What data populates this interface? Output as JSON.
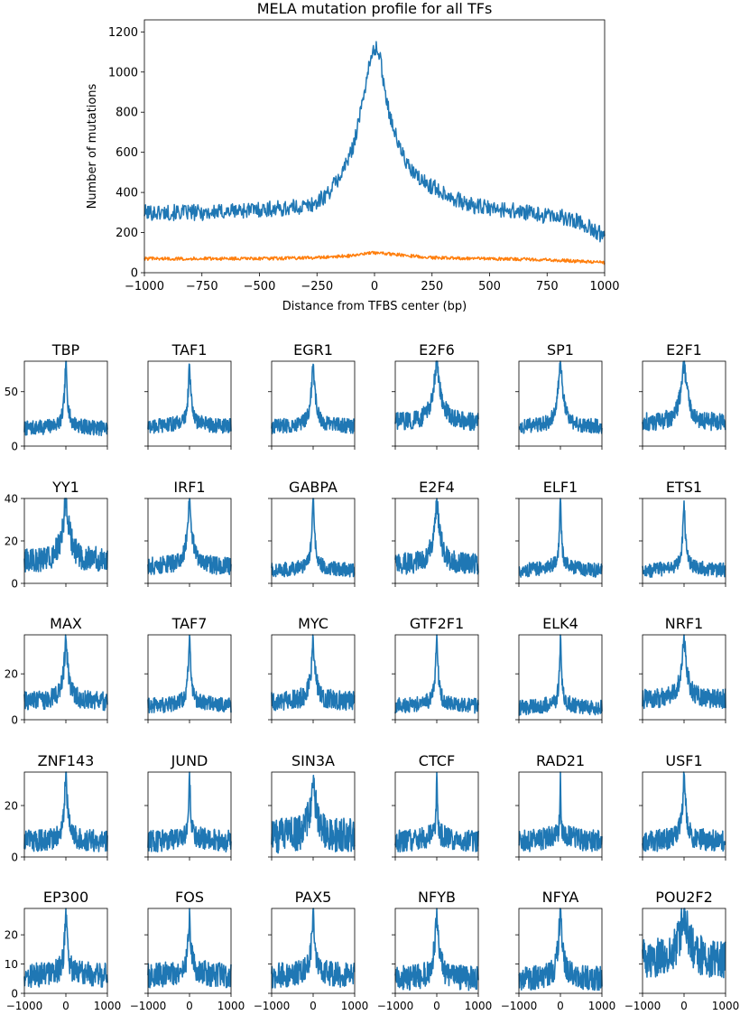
{
  "colors": {
    "observed": "#1f77b4",
    "expected": "#ff7f0e",
    "axis": "#000000",
    "background": "#ffffff"
  },
  "chart_data": [
    {
      "type": "line",
      "title": "MELA mutation profile for all TFs",
      "xlabel": "Distance from TFBS center (bp)",
      "ylabel": "Number of mutations",
      "xlim": [
        -1000,
        1000
      ],
      "ylim": [
        0,
        1260
      ],
      "xticks": [
        -1000,
        -750,
        -500,
        -250,
        0,
        250,
        500,
        750,
        1000
      ],
      "xtick_labels": [
        "−1000",
        "−750",
        "−500",
        "−250",
        "0",
        "250",
        "500",
        "750",
        "1000"
      ],
      "yticks": [
        0,
        200,
        400,
        600,
        800,
        1000,
        1200
      ],
      "ytick_labels": [
        "0",
        "200",
        "400",
        "600",
        "800",
        "1000",
        "1200"
      ],
      "grid": false,
      "series": [
        {
          "color": "#1f77b4",
          "x": [
            -1000,
            -900,
            -800,
            -700,
            -600,
            -500,
            -400,
            -300,
            -250,
            -200,
            -150,
            -100,
            -60,
            -30,
            0,
            20,
            40,
            60,
            100,
            150,
            200,
            250,
            300,
            400,
            500,
            600,
            700,
            800,
            900,
            1000
          ],
          "y": [
            300,
            300,
            300,
            300,
            310,
            315,
            320,
            330,
            350,
            400,
            480,
            600,
            800,
            1000,
            1120,
            1100,
            950,
            820,
            650,
            520,
            460,
            430,
            400,
            340,
            320,
            310,
            290,
            280,
            250,
            180
          ],
          "noise": 25
        },
        {
          "color": "#ff7f0e",
          "x": [
            -1000,
            -750,
            -500,
            -250,
            -100,
            0,
            100,
            250,
            500,
            750,
            1000
          ],
          "y": [
            70,
            70,
            70,
            75,
            85,
            100,
            90,
            75,
            70,
            65,
            50
          ],
          "noise": 5
        }
      ]
    },
    {
      "type": "line",
      "title": "TBP",
      "xlim": [
        -1000,
        1000
      ],
      "ylim": [
        0,
        78
      ],
      "yticks": [
        0,
        50
      ],
      "ytick_labels": [
        "0",
        "50"
      ],
      "peak": 75,
      "base": 16,
      "hw": 40,
      "noise": 4
    },
    {
      "type": "line",
      "title": "TAF1",
      "xlim": [
        -1000,
        1000
      ],
      "ylim": [
        0,
        78
      ],
      "yticks": [
        0,
        50
      ],
      "ytick_labels": [],
      "peak": 73,
      "base": 18,
      "hw": 40,
      "noise": 4
    },
    {
      "type": "line",
      "title": "EGR1",
      "xlim": [
        -1000,
        1000
      ],
      "ylim": [
        0,
        78
      ],
      "yticks": [
        0,
        50
      ],
      "ytick_labels": [],
      "peak": 72,
      "base": 18,
      "hw": 60,
      "noise": 4
    },
    {
      "type": "line",
      "title": "E2F6",
      "xlim": [
        -1000,
        1000
      ],
      "ylim": [
        0,
        78
      ],
      "yticks": [
        0,
        50
      ],
      "ytick_labels": [],
      "peak": 72,
      "base": 22,
      "hw": 120,
      "noise": 5
    },
    {
      "type": "line",
      "title": "SP1",
      "xlim": [
        -1000,
        1000
      ],
      "ylim": [
        0,
        78
      ],
      "yticks": [
        0,
        50
      ],
      "ytick_labels": [],
      "peak": 73,
      "base": 18,
      "hw": 80,
      "noise": 4
    },
    {
      "type": "line",
      "title": "E2F1",
      "xlim": [
        -1000,
        1000
      ],
      "ylim": [
        0,
        78
      ],
      "yticks": [
        0,
        50
      ],
      "ytick_labels": [],
      "peak": 72,
      "base": 22,
      "hw": 100,
      "noise": 5
    },
    {
      "type": "line",
      "title": "YY1",
      "xlim": [
        -1000,
        1000
      ],
      "ylim": [
        0,
        40
      ],
      "yticks": [
        0,
        20,
        40
      ],
      "ytick_labels": [
        "0",
        "20",
        "40"
      ],
      "peak": 38,
      "base": 11,
      "hw": 100,
      "noise": 3.5
    },
    {
      "type": "line",
      "title": "IRF1",
      "xlim": [
        -1000,
        1000
      ],
      "ylim": [
        0,
        40
      ],
      "yticks": [
        0,
        20,
        40
      ],
      "ytick_labels": [],
      "peak": 38,
      "base": 8,
      "hw": 70,
      "noise": 2.5
    },
    {
      "type": "line",
      "title": "GABPA",
      "xlim": [
        -1000,
        1000
      ],
      "ylim": [
        0,
        40
      ],
      "yticks": [
        0,
        20,
        40
      ],
      "ytick_labels": [],
      "peak": 38,
      "base": 6,
      "hw": 40,
      "noise": 2
    },
    {
      "type": "line",
      "title": "E2F4",
      "xlim": [
        -1000,
        1000
      ],
      "ylim": [
        0,
        40
      ],
      "yticks": [
        0,
        20,
        40
      ],
      "ytick_labels": [],
      "peak": 37,
      "base": 9,
      "hw": 90,
      "noise": 3
    },
    {
      "type": "line",
      "title": "ELF1",
      "xlim": [
        -1000,
        1000
      ],
      "ylim": [
        0,
        40
      ],
      "yticks": [
        0,
        20,
        40
      ],
      "ytick_labels": [],
      "peak": 39,
      "base": 6,
      "hw": 30,
      "noise": 2
    },
    {
      "type": "line",
      "title": "ETS1",
      "xlim": [
        -1000,
        1000
      ],
      "ylim": [
        0,
        40
      ],
      "yticks": [
        0,
        20,
        40
      ],
      "ytick_labels": [],
      "peak": 37,
      "base": 6,
      "hw": 40,
      "noise": 2
    },
    {
      "type": "line",
      "title": "MAX",
      "xlim": [
        -1000,
        1000
      ],
      "ylim": [
        0,
        37
      ],
      "yticks": [
        0,
        20
      ],
      "ytick_labels": [
        "0",
        "20"
      ],
      "peak": 34,
      "base": 8,
      "hw": 60,
      "noise": 2.5
    },
    {
      "type": "line",
      "title": "TAF7",
      "xlim": [
        -1000,
        1000
      ],
      "ylim": [
        0,
        37
      ],
      "yticks": [
        0,
        20
      ],
      "ytick_labels": [],
      "peak": 34,
      "base": 6,
      "hw": 40,
      "noise": 2
    },
    {
      "type": "line",
      "title": "MYC",
      "xlim": [
        -1000,
        1000
      ],
      "ylim": [
        0,
        37
      ],
      "yticks": [
        0,
        20
      ],
      "ytick_labels": [],
      "peak": 33,
      "base": 8,
      "hw": 60,
      "noise": 2.5
    },
    {
      "type": "line",
      "title": "GTF2F1",
      "xlim": [
        -1000,
        1000
      ],
      "ylim": [
        0,
        37
      ],
      "yticks": [
        0,
        20
      ],
      "ytick_labels": [],
      "peak": 34,
      "base": 6,
      "hw": 40,
      "noise": 2
    },
    {
      "type": "line",
      "title": "ELK4",
      "xlim": [
        -1000,
        1000
      ],
      "ylim": [
        0,
        37
      ],
      "yticks": [
        0,
        20
      ],
      "ytick_labels": [],
      "peak": 34,
      "base": 5,
      "hw": 30,
      "noise": 2
    },
    {
      "type": "line",
      "title": "NRF1",
      "xlim": [
        -1000,
        1000
      ],
      "ylim": [
        0,
        37
      ],
      "yticks": [
        0,
        20
      ],
      "ytick_labels": [],
      "peak": 33,
      "base": 9,
      "hw": 80,
      "noise": 2.5
    },
    {
      "type": "line",
      "title": "ZNF143",
      "xlim": [
        -1000,
        1000
      ],
      "ylim": [
        0,
        33
      ],
      "yticks": [
        0,
        20
      ],
      "ytick_labels": [
        "0",
        "20"
      ],
      "peak": 31,
      "base": 6,
      "hw": 50,
      "noise": 2.5
    },
    {
      "type": "line",
      "title": "JUND",
      "xlim": [
        -1000,
        1000
      ],
      "ylim": [
        0,
        33
      ],
      "yticks": [
        0,
        20
      ],
      "ytick_labels": [],
      "peak": 30,
      "base": 6,
      "hw": 30,
      "noise": 2.5
    },
    {
      "type": "line",
      "title": "SIN3A",
      "xlim": [
        -1000,
        1000
      ],
      "ylim": [
        0,
        33
      ],
      "yticks": [
        0,
        20
      ],
      "ytick_labels": [],
      "peak": 30,
      "base": 8,
      "hw": 80,
      "noise": 4
    },
    {
      "type": "line",
      "title": "CTCF",
      "xlim": [
        -1000,
        1000
      ],
      "ylim": [
        0,
        33
      ],
      "yticks": [
        0,
        20
      ],
      "ytick_labels": [],
      "peak": 32,
      "base": 6,
      "hw": 15,
      "noise": 2.5
    },
    {
      "type": "line",
      "title": "RAD21",
      "xlim": [
        -1000,
        1000
      ],
      "ylim": [
        0,
        33
      ],
      "yticks": [
        0,
        20
      ],
      "ytick_labels": [],
      "peak": 32,
      "base": 6,
      "hw": 15,
      "noise": 2.5
    },
    {
      "type": "line",
      "title": "USF1",
      "xlim": [
        -1000,
        1000
      ],
      "ylim": [
        0,
        33
      ],
      "yticks": [
        0,
        20
      ],
      "ytick_labels": [],
      "peak": 30,
      "base": 6,
      "hw": 50,
      "noise": 2.5
    },
    {
      "type": "line",
      "title": "EP300",
      "xlim": [
        -1000,
        1000
      ],
      "ylim": [
        0,
        29
      ],
      "yticks": [
        0,
        10,
        20
      ],
      "ytick_labels": [
        "0",
        "10",
        "20"
      ],
      "peak": 27,
      "base": 6,
      "hw": 40,
      "noise": 2.5
    },
    {
      "type": "line",
      "title": "FOS",
      "xlim": [
        -1000,
        1000
      ],
      "ylim": [
        0,
        29
      ],
      "yticks": [
        0,
        10,
        20
      ],
      "ytick_labels": [],
      "peak": 27,
      "base": 6,
      "hw": 40,
      "noise": 2.5
    },
    {
      "type": "line",
      "title": "PAX5",
      "xlim": [
        -1000,
        1000
      ],
      "ylim": [
        0,
        29
      ],
      "yticks": [
        0,
        10,
        20
      ],
      "ytick_labels": [],
      "peak": 26,
      "base": 6,
      "hw": 50,
      "noise": 2.5
    },
    {
      "type": "line",
      "title": "NFYB",
      "xlim": [
        -1000,
        1000
      ],
      "ylim": [
        0,
        29
      ],
      "yticks": [
        0,
        10,
        20
      ],
      "ytick_labels": [],
      "peak": 27,
      "base": 5,
      "hw": 60,
      "noise": 2.5
    },
    {
      "type": "line",
      "title": "NFYA",
      "xlim": [
        -1000,
        1000
      ],
      "ylim": [
        0,
        29
      ],
      "yticks": [
        0,
        10,
        20
      ],
      "ytick_labels": [],
      "peak": 27,
      "base": 5,
      "hw": 60,
      "noise": 2.5
    },
    {
      "type": "line",
      "title": "POU2F2",
      "xlim": [
        -1000,
        1000
      ],
      "ylim": [
        0,
        29
      ],
      "yticks": [
        0,
        10,
        20
      ],
      "ytick_labels": [],
      "peak": 27,
      "base": 12,
      "hw": 120,
      "noise": 4
    }
  ],
  "small_xticks": [
    -1000,
    0,
    1000
  ],
  "small_xtick_labels": [
    "−1000",
    "0",
    "1000"
  ]
}
